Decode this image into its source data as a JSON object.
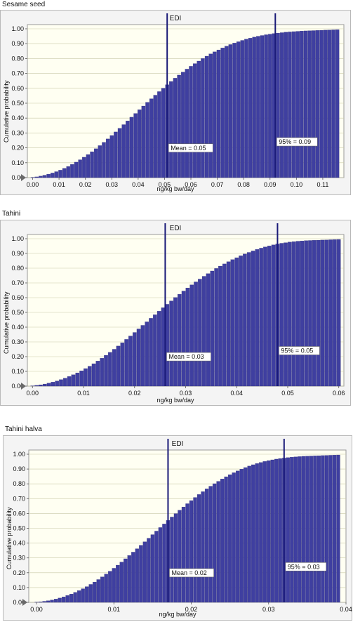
{
  "panels": [
    {
      "label": "Sesame seed",
      "title": "EDI",
      "ylabel": "Cumulative probability",
      "xlabel": "ng/kg bw/day",
      "mean_label": "Mean = 0.05",
      "p95_label": "95% = 0.09"
    },
    {
      "label": "Tahini",
      "title": "EDI",
      "ylabel": "Cumulative probability",
      "xlabel": "ng/kg bw/day",
      "mean_label": "Mean = 0.03",
      "p95_label": "95% = 0.05"
    },
    {
      "label": "Tahini halva",
      "title": "EDI",
      "ylabel": "Cumulative probability",
      "xlabel": "ng/kg bw/day",
      "mean_label": "Mean = 0.02",
      "p95_label": "95% = 0.03"
    }
  ],
  "colors": {
    "bar": "#3f3fa0",
    "bar_edge": "#2a2a7a",
    "plot_bg": "#fffff2",
    "marker_line": "#1a1a78",
    "grid": "#c9c9a8"
  },
  "chart_data": [
    {
      "type": "bar",
      "title": "EDI",
      "xlabel": "ng/kg bw/day",
      "ylabel": "Cumulative probability",
      "ylim": [
        0,
        1.0
      ],
      "xlim": [
        -0.002,
        0.118
      ],
      "xticks": [
        "0.00",
        "0.01",
        "0.02",
        "0.03",
        "0.04",
        "0.05",
        "0.06",
        "0.07",
        "0.08",
        "0.09",
        "0.10",
        "0.11"
      ],
      "xtick_values": [
        0,
        0.01,
        0.02,
        0.03,
        0.04,
        0.05,
        0.06,
        0.07,
        0.08,
        0.09,
        0.1,
        0.11
      ],
      "yticks": [
        "0.00",
        "0.10",
        "0.20",
        "0.30",
        "0.40",
        "0.50",
        "0.60",
        "0.70",
        "0.80",
        "0.90",
        "1.00"
      ],
      "ytick_values": [
        0,
        0.1,
        0.2,
        0.3,
        0.4,
        0.5,
        0.6,
        0.7,
        0.8,
        0.9,
        1.0
      ],
      "mean_x": 0.051,
      "p95_x": 0.092,
      "x": [
        0.0,
        0.0015,
        0.003,
        0.0045,
        0.006,
        0.0075,
        0.009,
        0.0105,
        0.012,
        0.0135,
        0.015,
        0.0165,
        0.018,
        0.0195,
        0.021,
        0.0225,
        0.024,
        0.0255,
        0.027,
        0.0285,
        0.03,
        0.0315,
        0.033,
        0.0345,
        0.036,
        0.0375,
        0.039,
        0.0405,
        0.042,
        0.0435,
        0.045,
        0.0465,
        0.048,
        0.0495,
        0.051,
        0.0525,
        0.054,
        0.0555,
        0.057,
        0.0585,
        0.06,
        0.0615,
        0.063,
        0.0645,
        0.066,
        0.0675,
        0.069,
        0.0705,
        0.072,
        0.0735,
        0.075,
        0.0765,
        0.078,
        0.0795,
        0.081,
        0.0825,
        0.084,
        0.0855,
        0.087,
        0.0885,
        0.09,
        0.0915,
        0.093,
        0.0945,
        0.096,
        0.0975,
        0.099,
        0.1005,
        0.102,
        0.1035,
        0.105,
        0.1065,
        0.108,
        0.1095,
        0.111,
        0.1125,
        0.114,
        0.1155
      ],
      "values": [
        0.002,
        0.005,
        0.01,
        0.016,
        0.023,
        0.031,
        0.04,
        0.05,
        0.062,
        0.075,
        0.089,
        0.104,
        0.12,
        0.137,
        0.155,
        0.174,
        0.194,
        0.215,
        0.237,
        0.26,
        0.283,
        0.307,
        0.331,
        0.356,
        0.381,
        0.406,
        0.431,
        0.456,
        0.481,
        0.506,
        0.53,
        0.554,
        0.578,
        0.601,
        0.624,
        0.646,
        0.668,
        0.689,
        0.709,
        0.729,
        0.748,
        0.766,
        0.783,
        0.8,
        0.816,
        0.831,
        0.845,
        0.858,
        0.871,
        0.883,
        0.894,
        0.904,
        0.913,
        0.922,
        0.93,
        0.937,
        0.944,
        0.95,
        0.955,
        0.96,
        0.964,
        0.968,
        0.971,
        0.974,
        0.977,
        0.979,
        0.981,
        0.983,
        0.985,
        0.986,
        0.987,
        0.988,
        0.989,
        0.99,
        0.991,
        0.992,
        0.993,
        0.994
      ]
    },
    {
      "type": "bar",
      "title": "EDI",
      "xlabel": "ng/kg bw/day",
      "ylabel": "Cumulative probability",
      "ylim": [
        0,
        1.0
      ],
      "xlim": [
        -0.001,
        0.061
      ],
      "xticks": [
        "0.00",
        "0.01",
        "0.02",
        "0.03",
        "0.04",
        "0.05",
        "0.06"
      ],
      "xtick_values": [
        0,
        0.01,
        0.02,
        0.03,
        0.04,
        0.05,
        0.06
      ],
      "yticks": [
        "0.00",
        "0.10",
        "0.20",
        "0.30",
        "0.40",
        "0.50",
        "0.60",
        "0.70",
        "0.80",
        "0.90",
        "1.00"
      ],
      "ytick_values": [
        0,
        0.1,
        0.2,
        0.3,
        0.4,
        0.5,
        0.6,
        0.7,
        0.8,
        0.9,
        1.0
      ],
      "mean_x": 0.026,
      "p95_x": 0.048,
      "x": [
        0.0,
        0.0008,
        0.0016,
        0.0024,
        0.0032,
        0.004,
        0.0048,
        0.0056,
        0.0064,
        0.0072,
        0.008,
        0.0088,
        0.0096,
        0.0104,
        0.0112,
        0.012,
        0.0128,
        0.0136,
        0.0144,
        0.0152,
        0.016,
        0.0168,
        0.0176,
        0.0184,
        0.0192,
        0.02,
        0.0208,
        0.0216,
        0.0224,
        0.0232,
        0.024,
        0.0248,
        0.0256,
        0.0264,
        0.0272,
        0.028,
        0.0288,
        0.0296,
        0.0304,
        0.0312,
        0.032,
        0.0328,
        0.0336,
        0.0344,
        0.0352,
        0.036,
        0.0368,
        0.0376,
        0.0384,
        0.0392,
        0.04,
        0.0408,
        0.0416,
        0.0424,
        0.0432,
        0.044,
        0.0448,
        0.0456,
        0.0464,
        0.0472,
        0.048,
        0.0488,
        0.0496,
        0.0504,
        0.0512,
        0.052,
        0.0528,
        0.0536,
        0.0544,
        0.0552,
        0.056,
        0.0568,
        0.0576,
        0.0584,
        0.0592,
        0.06
      ],
      "values": [
        0.002,
        0.005,
        0.009,
        0.014,
        0.02,
        0.027,
        0.035,
        0.044,
        0.054,
        0.065,
        0.077,
        0.09,
        0.104,
        0.119,
        0.135,
        0.152,
        0.17,
        0.189,
        0.209,
        0.229,
        0.25,
        0.272,
        0.294,
        0.317,
        0.34,
        0.364,
        0.388,
        0.412,
        0.436,
        0.46,
        0.484,
        0.508,
        0.532,
        0.555,
        0.578,
        0.601,
        0.623,
        0.645,
        0.666,
        0.687,
        0.707,
        0.726,
        0.745,
        0.763,
        0.781,
        0.798,
        0.814,
        0.829,
        0.844,
        0.858,
        0.871,
        0.884,
        0.896,
        0.907,
        0.917,
        0.927,
        0.936,
        0.944,
        0.951,
        0.958,
        0.964,
        0.969,
        0.973,
        0.977,
        0.98,
        0.983,
        0.985,
        0.987,
        0.988,
        0.989,
        0.99,
        0.991,
        0.992,
        0.993,
        0.994,
        0.995
      ]
    },
    {
      "type": "bar",
      "title": "EDI",
      "xlabel": "ng/kg bw/day",
      "ylabel": "Cumulative probability",
      "ylim": [
        0,
        1.0
      ],
      "xlim": [
        -0.001,
        0.04
      ],
      "xticks": [
        "0.00",
        "0.01",
        "0.02",
        "0.03",
        "0.04"
      ],
      "xtick_values": [
        0,
        0.01,
        0.02,
        0.03,
        0.04
      ],
      "yticks": [
        "0.00",
        "0.10",
        "0.20",
        "0.30",
        "0.40",
        "0.50",
        "0.60",
        "0.70",
        "0.80",
        "0.90",
        "1.00"
      ],
      "ytick_values": [
        0,
        0.1,
        0.2,
        0.3,
        0.4,
        0.5,
        0.6,
        0.7,
        0.8,
        0.9,
        1.0
      ],
      "mean_x": 0.017,
      "p95_x": 0.032,
      "x": [
        0.0,
        0.0005,
        0.001,
        0.0015,
        0.002,
        0.0025,
        0.003,
        0.0035,
        0.004,
        0.0045,
        0.005,
        0.0055,
        0.006,
        0.0065,
        0.007,
        0.0075,
        0.008,
        0.0085,
        0.009,
        0.0095,
        0.01,
        0.0105,
        0.011,
        0.0115,
        0.012,
        0.0125,
        0.013,
        0.0135,
        0.014,
        0.0145,
        0.015,
        0.0155,
        0.016,
        0.0165,
        0.017,
        0.0175,
        0.018,
        0.0185,
        0.019,
        0.0195,
        0.02,
        0.0205,
        0.021,
        0.0215,
        0.022,
        0.0225,
        0.023,
        0.0235,
        0.024,
        0.0245,
        0.025,
        0.0255,
        0.026,
        0.0265,
        0.027,
        0.0275,
        0.028,
        0.0285,
        0.029,
        0.0295,
        0.03,
        0.0305,
        0.031,
        0.0315,
        0.032,
        0.0325,
        0.033,
        0.0335,
        0.034,
        0.0345,
        0.035,
        0.0355,
        0.036,
        0.0365,
        0.037,
        0.0375,
        0.038,
        0.0385,
        0.039
      ],
      "values": [
        0.002,
        0.004,
        0.007,
        0.011,
        0.016,
        0.022,
        0.029,
        0.037,
        0.046,
        0.056,
        0.067,
        0.079,
        0.092,
        0.106,
        0.121,
        0.137,
        0.154,
        0.172,
        0.191,
        0.21,
        0.23,
        0.251,
        0.272,
        0.294,
        0.316,
        0.339,
        0.362,
        0.385,
        0.409,
        0.433,
        0.457,
        0.481,
        0.505,
        0.529,
        0.553,
        0.576,
        0.599,
        0.622,
        0.644,
        0.666,
        0.687,
        0.708,
        0.728,
        0.747,
        0.766,
        0.784,
        0.801,
        0.817,
        0.833,
        0.848,
        0.862,
        0.875,
        0.887,
        0.899,
        0.91,
        0.92,
        0.929,
        0.937,
        0.944,
        0.951,
        0.957,
        0.962,
        0.967,
        0.971,
        0.974,
        0.977,
        0.98,
        0.982,
        0.984,
        0.986,
        0.987,
        0.988,
        0.989,
        0.99,
        0.991,
        0.992,
        0.993,
        0.994,
        0.995
      ]
    }
  ]
}
